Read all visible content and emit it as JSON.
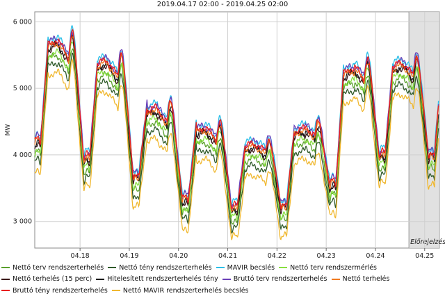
{
  "chart_data": {
    "type": "line",
    "title": "2019.04.17 02:00 - 2019.04.25 02:00",
    "ylabel": "MW",
    "xlabel": "",
    "ylim": [
      2600,
      6150
    ],
    "xlim": [
      0,
      8.22
    ],
    "y_ticks": [
      3000,
      4000,
      5000,
      6000
    ],
    "y_tick_labels": [
      "3 000",
      "4 000",
      "5 000",
      "6 000"
    ],
    "x_ticks": [
      0.92,
      1.92,
      2.92,
      3.92,
      4.92,
      5.92,
      6.92,
      7.92
    ],
    "x_tick_labels": [
      "04.18",
      "04.19",
      "04.20",
      "04.21",
      "04.22",
      "04.23",
      "04.24",
      "04.25"
    ],
    "forecast_region": {
      "x_start": 7.6,
      "label": "Előrejelzés"
    },
    "day_peaks": [
      5850,
      5550,
      4800,
      4500,
      4250,
      4500,
      5450,
      5500
    ],
    "day_mins": [
      4150,
      3900,
      3650,
      3300,
      3180,
      3200,
      3500,
      3950
    ],
    "series": [
      {
        "name": "Nettó terv rendszerterhelés",
        "color": "#5aa02c",
        "offset": -220
      },
      {
        "name": "Nettó tény rendszerterhelés",
        "color": "#2f5a2a",
        "offset": -330
      },
      {
        "name": "MAVIR becslés",
        "color": "#2bbfe8",
        "offset": 60
      },
      {
        "name": "Nettó terv rendszermérlés",
        "color": "#88e040",
        "offset": -170
      },
      {
        "name": "Nettó terhelés (15 perc)",
        "color": "#3a1818",
        "offset": -80
      },
      {
        "name": "Hitelesített rendszerterhelés tény",
        "color": "#1a1a1a",
        "offset": -60
      },
      {
        "name": "Bruttó terv rendszerterhelés",
        "color": "#6a3fb8",
        "offset": 30
      },
      {
        "name": "Nettó terhelés",
        "color": "#f07a20",
        "offset": -40
      },
      {
        "name": "Bruttó tény rendszerterhelés",
        "color": "#e82020",
        "offset": 0
      },
      {
        "name": "Nettó MAVIR rendszerterhelés becslés",
        "color": "#f0b830",
        "offset": -470
      }
    ]
  }
}
